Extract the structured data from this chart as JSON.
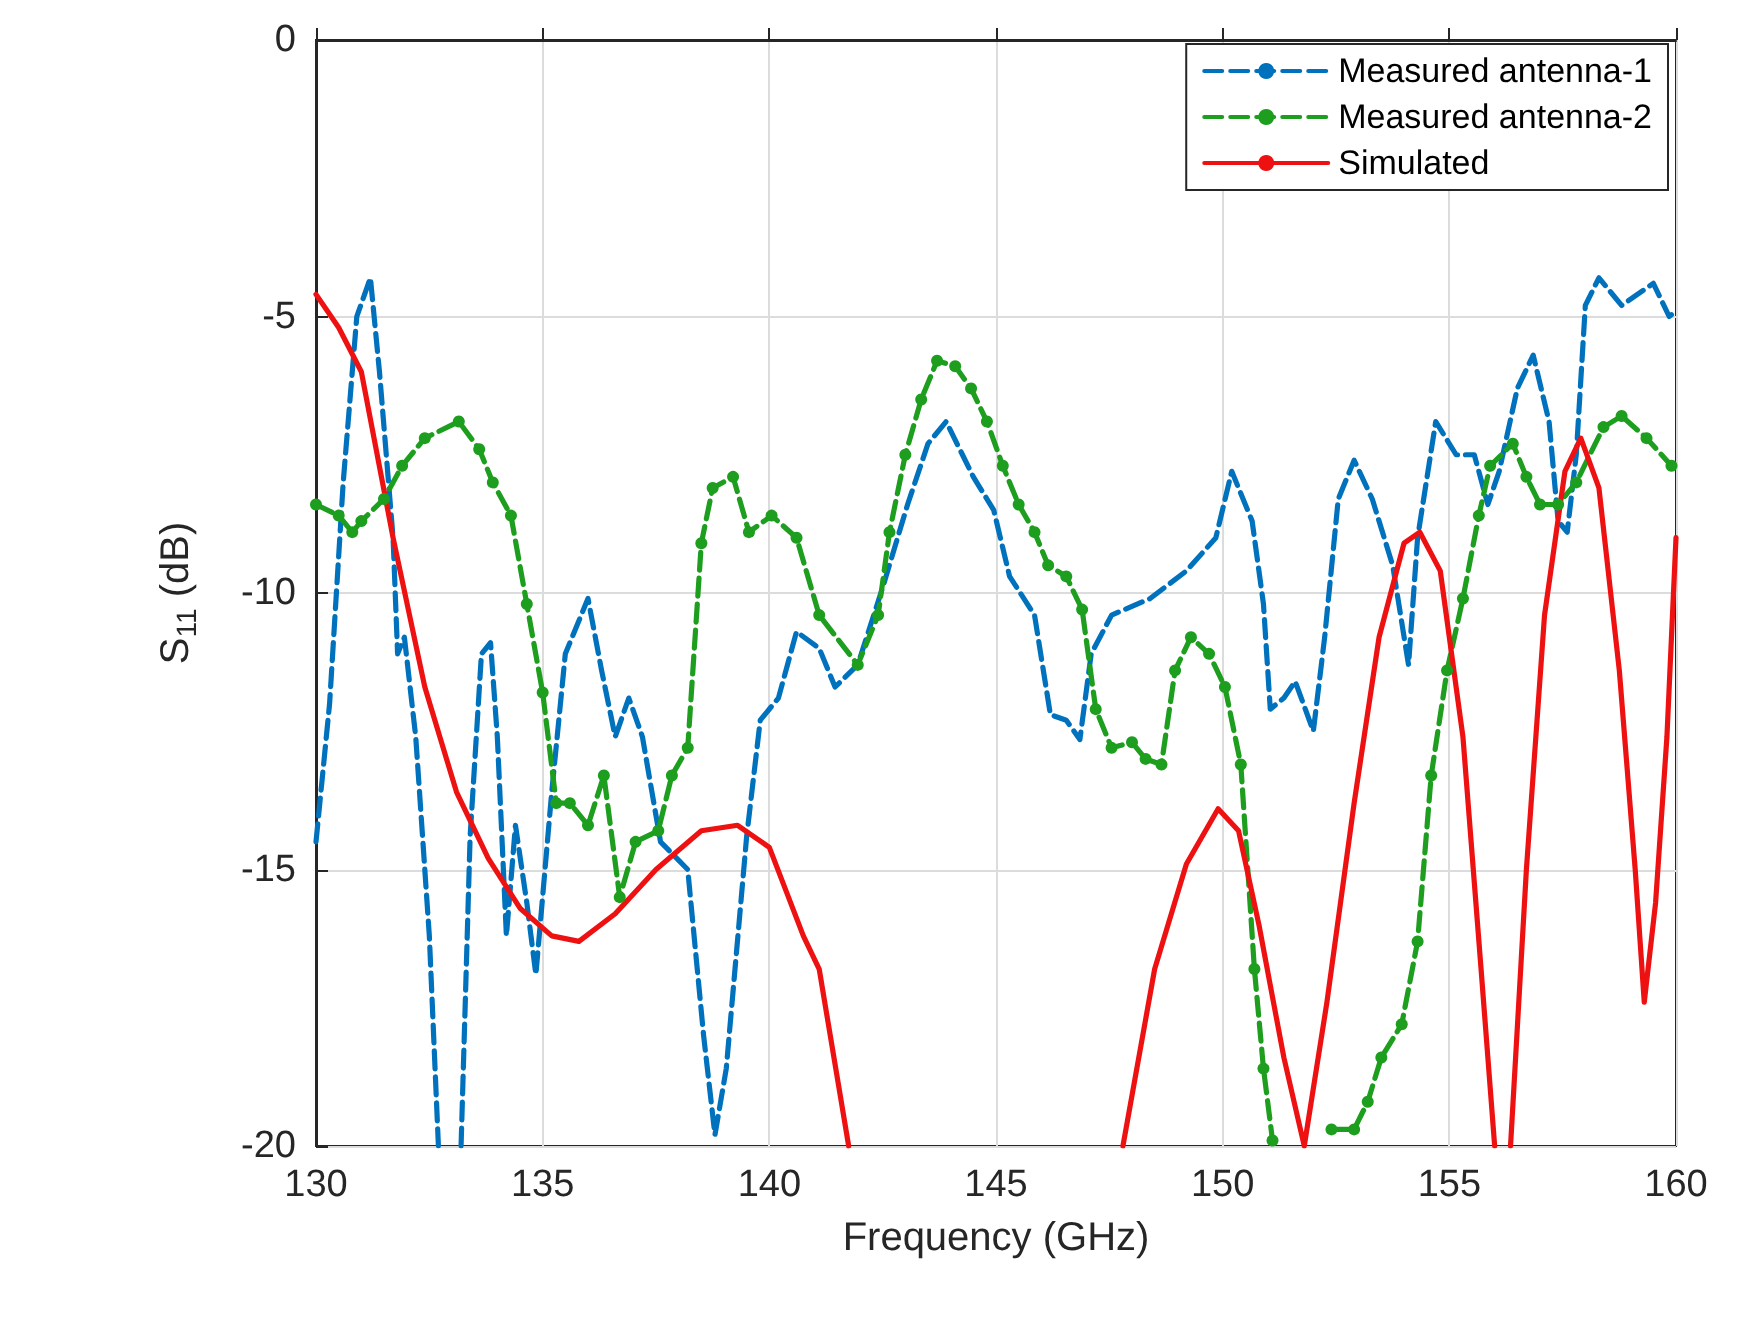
{
  "chart_data": {
    "type": "line",
    "xlabel": "Frequency (GHz)",
    "ylabel": "S$_{11}$ (dB)",
    "xlim": [
      130,
      160
    ],
    "xticks": [
      130,
      135,
      140,
      145,
      150,
      155,
      160
    ],
    "ylim": [
      -20,
      0
    ],
    "yticks": [
      -20,
      -15,
      -10,
      -5,
      0
    ],
    "grid": true,
    "legend": "top right",
    "series": [
      {
        "name": "Measured antenna-1",
        "color": "#0072bd",
        "line_style": "dashed",
        "marker": "none",
        "x": [
          130,
          130.3,
          130.6,
          130.9,
          131.2,
          131.4,
          131.7,
          131.8,
          131.95,
          132.2,
          132.5,
          132.7,
          133.0,
          133.2,
          133.4,
          133.65,
          133.85,
          134.0,
          134.2,
          134.4,
          134.65,
          134.85,
          135.2,
          135.5,
          136.0,
          136.3,
          136.6,
          136.9,
          137.2,
          137.6,
          138.2,
          138.55,
          138.8,
          139.05,
          139.5,
          139.8,
          140.2,
          140.6,
          141.1,
          141.45,
          141.95,
          142.5,
          143.05,
          143.5,
          143.9,
          144.5,
          144.95,
          145.3,
          145.85,
          146.2,
          146.55,
          146.85,
          147.1,
          147.55,
          148.4,
          149.2,
          149.85,
          150.2,
          150.65,
          150.9,
          151.05,
          151.35,
          151.6,
          152.0,
          152.25,
          152.55,
          152.9,
          153.3,
          153.75,
          154.1,
          154.3,
          154.7,
          155.15,
          155.55,
          155.85,
          156.1,
          156.5,
          156.85,
          157.2,
          157.4,
          157.6,
          157.8,
          158.0,
          158.3,
          158.8,
          159.5,
          159.85,
          160
        ],
        "values": [
          -14.5,
          -12,
          -8,
          -5,
          -4.3,
          -6,
          -9,
          -11.1,
          -10.8,
          -12.6,
          -16.2,
          -20,
          null,
          -20,
          -14.4,
          -11.1,
          -10.9,
          -12.6,
          -16.2,
          -14.2,
          -15.6,
          -16.9,
          -13.6,
          -11.1,
          -10.1,
          -11.4,
          -12.6,
          -11.9,
          -12.6,
          -14.5,
          -15,
          -18,
          -19.8,
          -18.6,
          -14.4,
          -12.3,
          -11.9,
          -10.7,
          -11,
          -11.7,
          -11.3,
          -9.9,
          -8.4,
          -7.3,
          -6.9,
          -7.9,
          -8.5,
          -9.7,
          -10.4,
          -12.2,
          -12.3,
          -12.65,
          -11.1,
          -10.4,
          -10.1,
          -9.6,
          -9,
          -7.8,
          -8.7,
          -10.2,
          -12.1,
          -11.9,
          -11.6,
          -12.5,
          -10.8,
          -8.3,
          -7.6,
          -8.3,
          -9.5,
          -11.3,
          -9,
          -6.9,
          -7.5,
          -7.5,
          -8.4,
          -7.8,
          -6.3,
          -5.7,
          -6.9,
          -8.7,
          -8.9,
          -7.5,
          -4.8,
          -4.3,
          -4.8,
          -4.4,
          -5,
          -4.9
        ]
      },
      {
        "name": "Measured antenna-2",
        "color": "#1e9e1e",
        "line_style": "dashed",
        "marker": "circle",
        "x": [
          130,
          130.5,
          130.8,
          131.0,
          131.5,
          131.9,
          132.4,
          133.15,
          133.6,
          133.9,
          134.3,
          134.65,
          135.0,
          135.3,
          135.6,
          136.0,
          136.35,
          136.7,
          137.05,
          137.55,
          137.85,
          138.2,
          138.5,
          138.75,
          139.2,
          139.55,
          140.05,
          140.6,
          141.1,
          141.95,
          142.4,
          142.65,
          143.0,
          143.35,
          143.7,
          144.1,
          144.45,
          144.8,
          145.15,
          145.5,
          145.85,
          146.15,
          146.55,
          146.9,
          147.2,
          147.55,
          148.0,
          148.3,
          148.65,
          148.95,
          149.3,
          149.7,
          150.05,
          150.4,
          150.7,
          150.9,
          151.1,
          151.7,
          152.4,
          152.9,
          153.2,
          153.5,
          153.95,
          154.3,
          154.6,
          154.95,
          155.3,
          155.65,
          155.9,
          156.4,
          156.7,
          157.0,
          157.4,
          157.8,
          158.4,
          158.8,
          159.35,
          159.9
        ],
        "values": [
          -8.4,
          -8.6,
          -8.9,
          -8.7,
          -8.3,
          -7.7,
          -7.2,
          -6.9,
          -7.4,
          -8,
          -8.6,
          -10.2,
          -11.8,
          -13.8,
          -13.8,
          -14.2,
          -13.3,
          -15.5,
          -14.5,
          -14.3,
          -13.3,
          -12.8,
          -9.1,
          -8.1,
          -7.9,
          -8.9,
          -8.6,
          -9,
          -10.4,
          -11.3,
          -10.4,
          -8.9,
          -7.5,
          -6.5,
          -5.8,
          -5.9,
          -6.3,
          -6.9,
          -7.7,
          -8.4,
          -8.9,
          -9.5,
          -9.7,
          -10.3,
          -12.1,
          -12.8,
          -12.7,
          -13,
          -13.1,
          -11.4,
          -10.8,
          -11.1,
          -11.7,
          -13.1,
          -16.8,
          -18.6,
          -19.9,
          null,
          -19.7,
          -19.7,
          -19.2,
          -18.4,
          -17.8,
          -16.3,
          -13.3,
          -11.4,
          -10.1,
          -8.6,
          -7.7,
          -7.3,
          -7.9,
          -8.4,
          -8.4,
          -8,
          -7,
          -6.8,
          -7.2,
          -7.7
        ]
      },
      {
        "name": "Simulated",
        "color": "#ee1111",
        "line_style": "solid",
        "marker": "none",
        "x": [
          130,
          130.5,
          131.0,
          131.7,
          132.4,
          133.1,
          133.8,
          134.5,
          135.2,
          135.8,
          136.6,
          137.5,
          138.5,
          139.3,
          140.0,
          140.75,
          141.1,
          141.75,
          144.8,
          147.8,
          148.5,
          149.2,
          149.9,
          150.35,
          150.8,
          151.35,
          151.8,
          152.3,
          152.9,
          153.45,
          154.0,
          154.35,
          154.8,
          155.3,
          155.7,
          156.0,
          156.2,
          156.35,
          156.7,
          157.1,
          157.55,
          157.9,
          158.3,
          158.75,
          159.1,
          159.3,
          159.55,
          159.8,
          160
        ],
        "values": [
          -4.6,
          -5.2,
          -6,
          -9,
          -11.7,
          -13.6,
          -14.8,
          -15.7,
          -16.2,
          -16.3,
          -15.8,
          -15,
          -14.3,
          -14.2,
          -14.6,
          -16.2,
          -16.8,
          -20,
          null,
          -20,
          -16.8,
          -14.9,
          -13.9,
          -14.3,
          -16,
          -18.4,
          -20,
          -17.4,
          -13.8,
          -10.8,
          -9.1,
          -8.9,
          -9.6,
          -12.6,
          -16.8,
          -20,
          null,
          -20,
          -15,
          -10.4,
          -7.8,
          -7.2,
          -8.1,
          -11.4,
          -15,
          -17.4,
          -15.6,
          -12.6,
          -9
        ]
      }
    ]
  }
}
